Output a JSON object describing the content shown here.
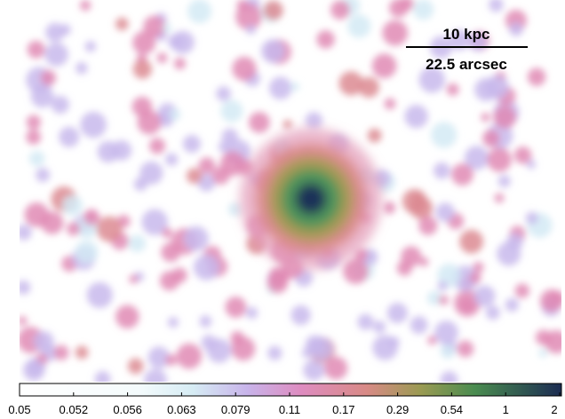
{
  "scale_bar": {
    "distance": "10 kpc",
    "angle": "22.5 arcsec"
  },
  "colorbar": {
    "ticks": [
      0.05,
      0.052,
      0.056,
      0.063,
      0.079,
      0.11,
      0.17,
      0.29,
      0.54,
      1,
      2
    ]
  }
}
